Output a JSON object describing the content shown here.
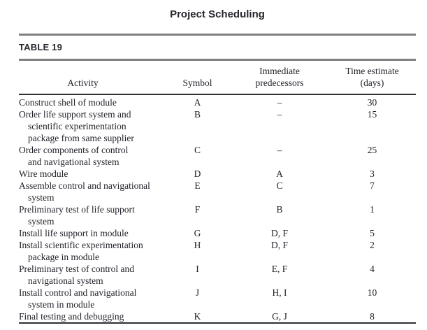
{
  "title": "Project Scheduling",
  "colors": {
    "text": "#23232b",
    "heading": "#26262e",
    "rule_gray": "#7f7f7f",
    "rule_dark": "#2f2f36",
    "background": "#ffffff"
  },
  "table": {
    "label": "TABLE 19",
    "columns": [
      {
        "id": "activity",
        "lines": [
          "Activity"
        ]
      },
      {
        "id": "symbol",
        "lines": [
          "Symbol"
        ]
      },
      {
        "id": "predecessors",
        "lines": [
          "Immediate",
          "predecessors"
        ]
      },
      {
        "id": "days",
        "lines": [
          "Time estimate",
          "(days)"
        ]
      }
    ],
    "rows": [
      {
        "activity": [
          "Construct shell of module"
        ],
        "symbol": "A",
        "predecessors": "–",
        "days": "30"
      },
      {
        "activity": [
          "Order life support system and",
          "scientific experimentation",
          "package from same supplier"
        ],
        "symbol": "B",
        "predecessors": "–",
        "days": "15"
      },
      {
        "activity": [
          "Order components of control",
          "and navigational system"
        ],
        "symbol": "C",
        "predecessors": "–",
        "days": "25"
      },
      {
        "activity": [
          "Wire module"
        ],
        "symbol": "D",
        "predecessors": "A",
        "days": "3"
      },
      {
        "activity": [
          "Assemble control and navigational",
          "system"
        ],
        "symbol": "E",
        "predecessors": "C",
        "days": "7"
      },
      {
        "activity": [
          "Preliminary test of life support",
          "system"
        ],
        "symbol": "F",
        "predecessors": "B",
        "days": "1"
      },
      {
        "activity": [
          "Install life support in module"
        ],
        "symbol": "G",
        "predecessors": "D, F",
        "days": "5"
      },
      {
        "activity": [
          "Install scientific experimentation",
          "package in module"
        ],
        "symbol": "H",
        "predecessors": "D, F",
        "days": "2"
      },
      {
        "activity": [
          "Preliminary test of control and",
          "navigational system"
        ],
        "symbol": "I",
        "predecessors": "E, F",
        "days": "4"
      },
      {
        "activity": [
          "Install control and navigational",
          "system in module"
        ],
        "symbol": "J",
        "predecessors": "H, I",
        "days": "10"
      },
      {
        "activity": [
          "Final testing and debugging"
        ],
        "symbol": "K",
        "predecessors": "G, J",
        "days": "8"
      }
    ]
  }
}
